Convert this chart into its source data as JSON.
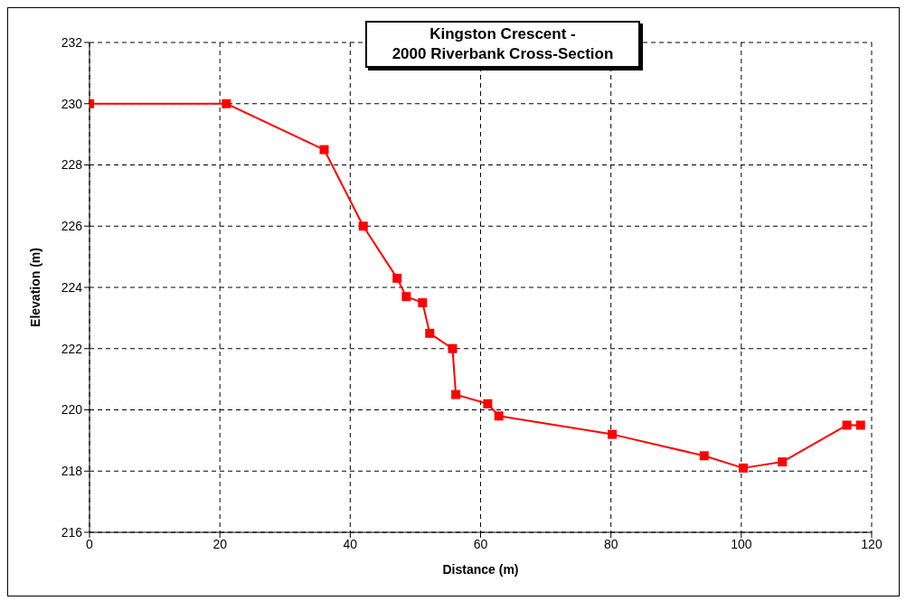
{
  "chart_data": {
    "type": "line",
    "title": "Kingston Crescent -\n2000 Riverbank Cross-Section",
    "xlabel": "Distance (m)",
    "ylabel": "Elevation (m)",
    "x": [
      0,
      21,
      36,
      42,
      47.2,
      48.6,
      51.1,
      52.2,
      55.7,
      56.2,
      61.1,
      62.8,
      80.2,
      94.3,
      100.3,
      106.3,
      116.2,
      118.3
    ],
    "series": [
      {
        "color": "#ff0000",
        "values": [
          230,
          230,
          228.5,
          226,
          224.3,
          223.7,
          223.5,
          222.5,
          222.0,
          220.5,
          220.2,
          219.8,
          219.2,
          218.5,
          218.1,
          218.3,
          219.5,
          219.5
        ]
      }
    ],
    "xlim": [
      0,
      120
    ],
    "xticks": [
      0,
      20,
      40,
      60,
      80,
      100,
      120
    ],
    "ylim": [
      216,
      232
    ],
    "yticks": [
      216,
      218,
      220,
      222,
      224,
      226,
      228,
      230,
      232
    ],
    "grid": true,
    "legend": false,
    "marker": "square",
    "line_style": "solid"
  }
}
